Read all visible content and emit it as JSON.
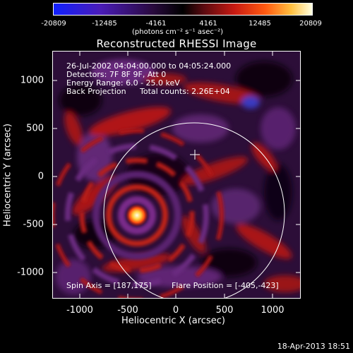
{
  "colorbar": {
    "ticks": [
      "-20809",
      "-12485",
      "-4161",
      "4161",
      "12485",
      "20809"
    ],
    "unit_label": "(photons cm⁻² s⁻¹ asec⁻²)"
  },
  "title": "Reconstructed RHESSI Image",
  "annotations": {
    "time_range": "26-Jul-2002 04:04:00.000 to 04:05:24.000",
    "detectors": "Detectors: 7F 8F 9F, Att 0",
    "energy": "Energy Range: 6.0 - 25.0 keV",
    "method": "Back Projection",
    "counts": "Total counts: 2.26E+04",
    "spin_axis": "Spin Axis = [187,175]",
    "flare_position": "Flare Position = [-405,-423]"
  },
  "axes": {
    "xlabel": "Heliocentric X (arcsec)",
    "ylabel": "Heliocentric Y (arcsec)",
    "xticks": [
      "-1000",
      "-500",
      "0",
      "500",
      "1000"
    ],
    "yticks": [
      "1000",
      "500",
      "0",
      "-500",
      "-1000"
    ]
  },
  "footer": {
    "timestamp": "18-Apr-2013 18:51"
  }
}
